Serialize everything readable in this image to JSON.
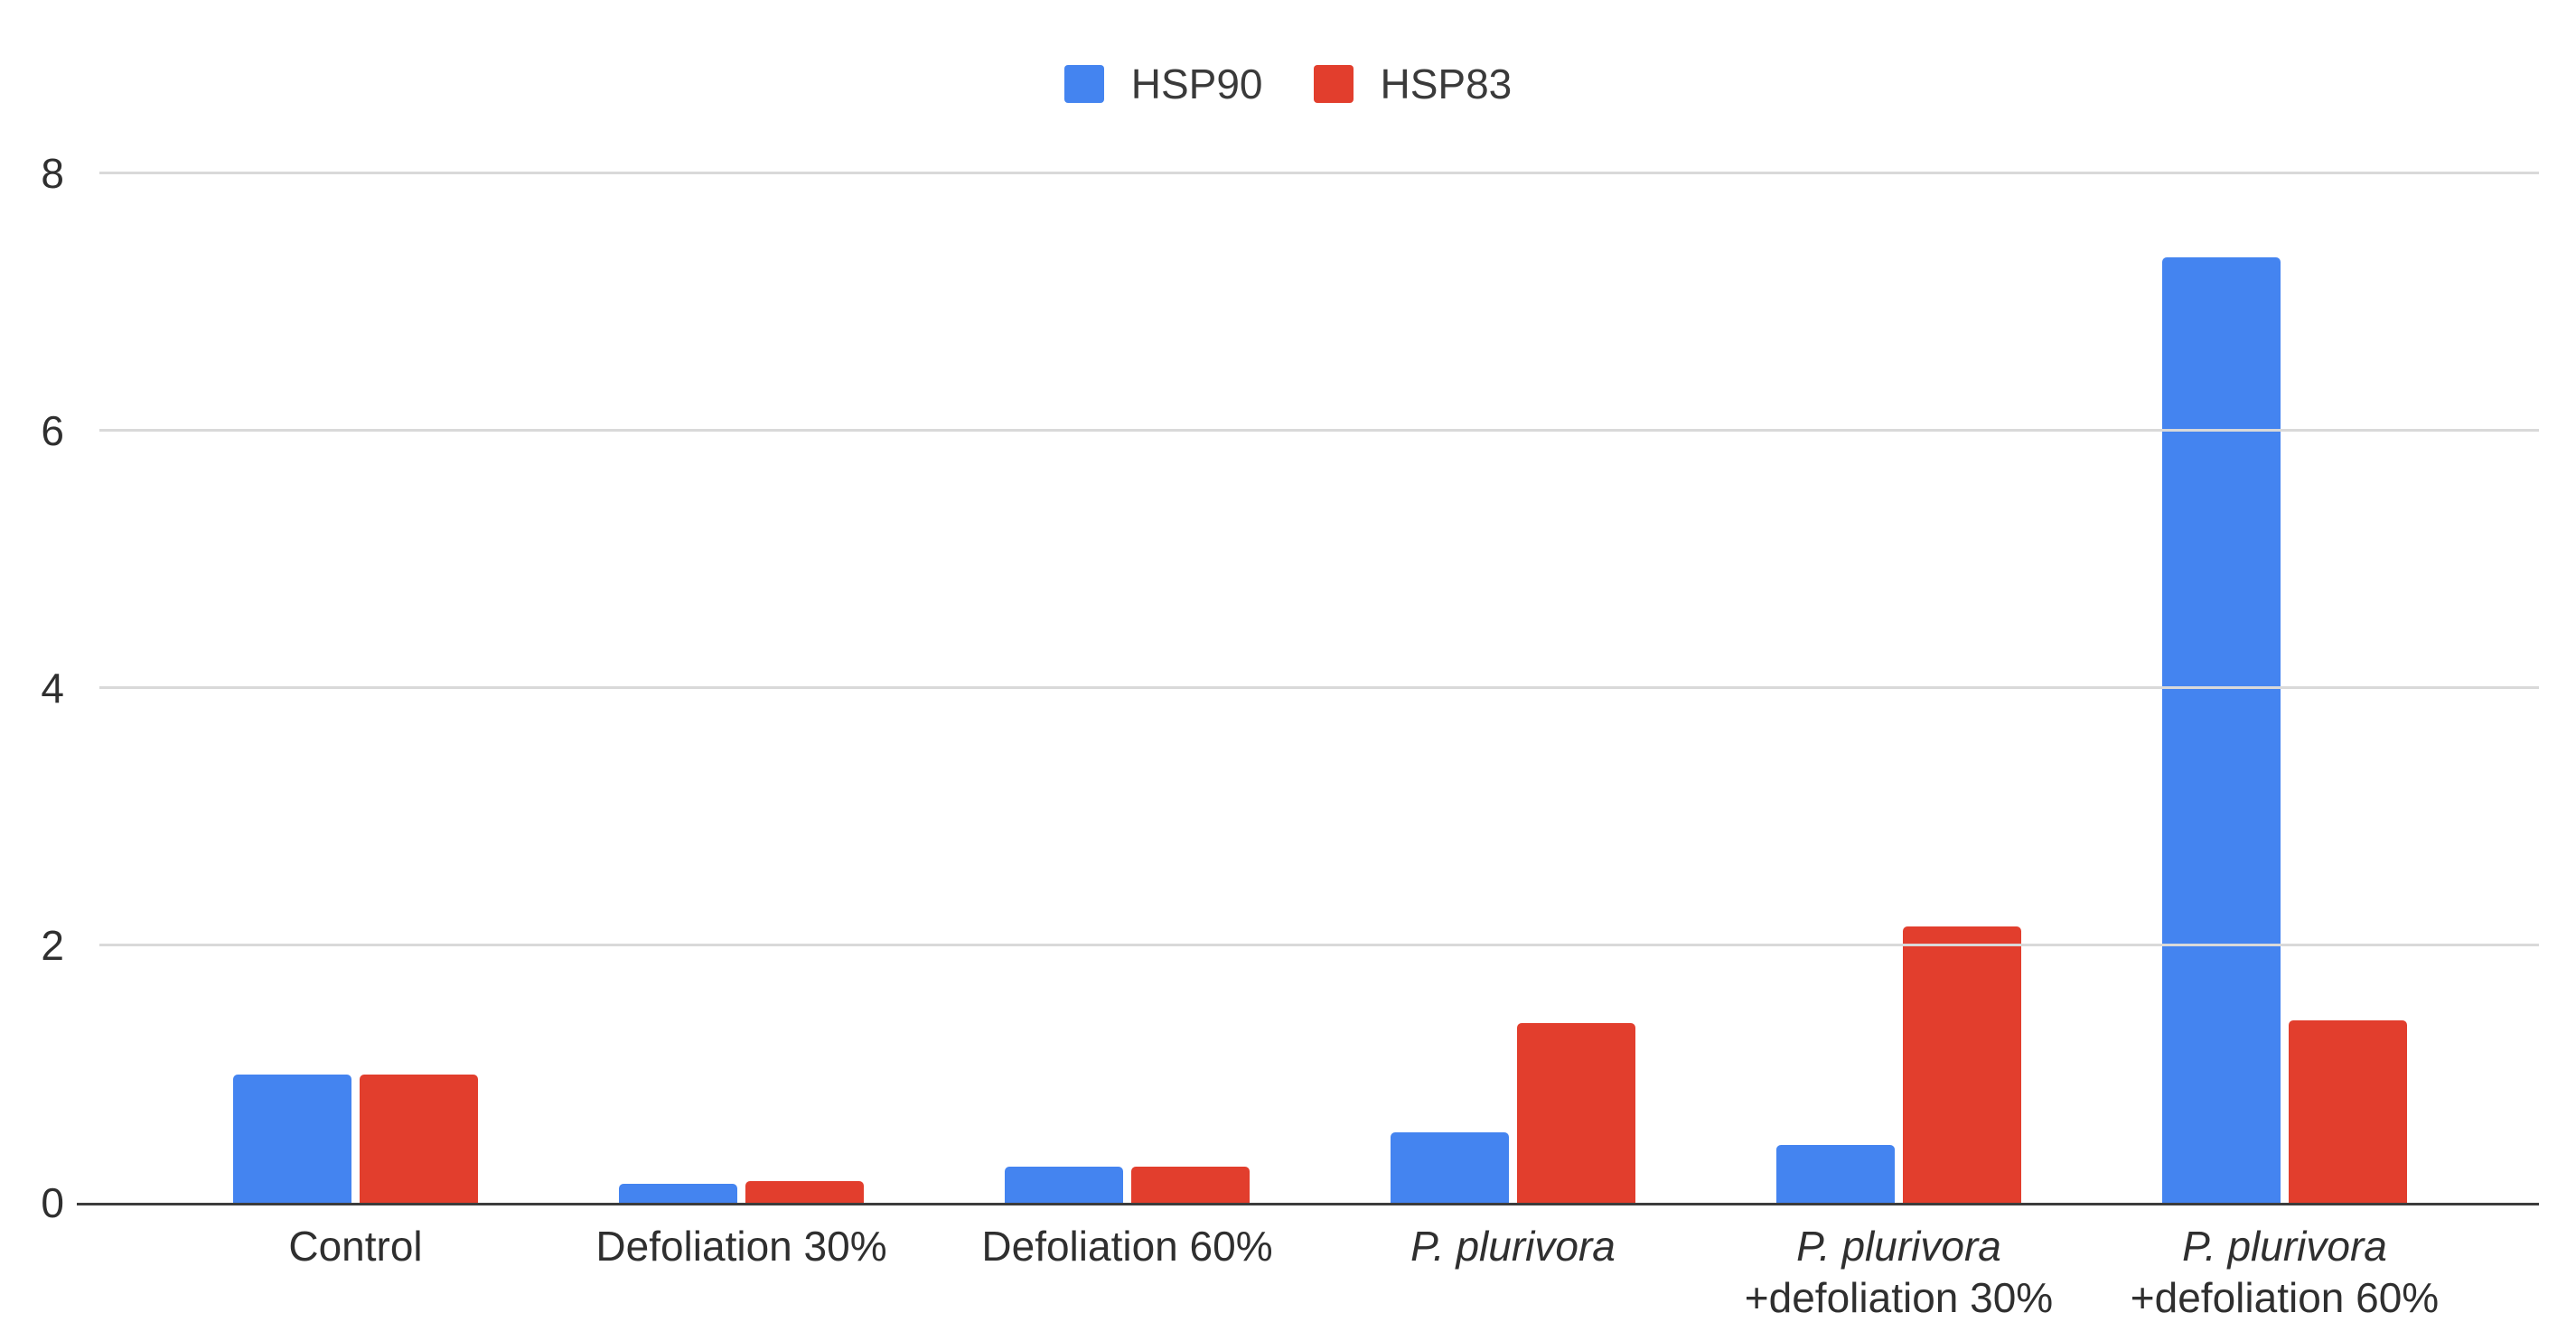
{
  "chart_data": {
    "type": "bar",
    "title": "",
    "legend": {
      "position": "top",
      "entries": [
        "HSP90",
        "HSP83"
      ]
    },
    "categories": [
      {
        "slug": "control",
        "label": "Control",
        "lines": [
          {
            "text": "Control",
            "italic": false
          }
        ]
      },
      {
        "slug": "defoliation-30",
        "label": "Defoliation 30%",
        "lines": [
          {
            "text": "Defoliation 30%",
            "italic": false
          }
        ]
      },
      {
        "slug": "defoliation-60",
        "label": "Defoliation 60%",
        "lines": [
          {
            "text": "Defoliation 60%",
            "italic": false
          }
        ]
      },
      {
        "slug": "p-plurivora",
        "label": "P. plurivora",
        "lines": [
          {
            "text": "P. plurivora",
            "italic": true
          }
        ]
      },
      {
        "slug": "p-plurivora-defoliation-30",
        "label": "P. plurivora +defoliation 30%",
        "lines": [
          {
            "text": "P. plurivora",
            "italic": true
          },
          {
            "text": "+defoliation 30%",
            "italic": false
          }
        ]
      },
      {
        "slug": "p-plurivora-defoliation-60",
        "label": "P. plurivora +defoliation 60%",
        "lines": [
          {
            "text": "P. plurivora",
            "italic": true
          },
          {
            "text": "+defoliation 60%",
            "italic": false
          }
        ]
      }
    ],
    "series": [
      {
        "name": "HSP90",
        "color": "#4484f0",
        "values": [
          1.0,
          0.15,
          0.28,
          0.55,
          0.45,
          7.35
        ]
      },
      {
        "name": "HSP83",
        "color": "#e23e2d",
        "values": [
          1.0,
          0.17,
          0.28,
          1.4,
          2.15,
          1.42
        ]
      }
    ],
    "xlabel": "",
    "ylabel": "",
    "ylim": [
      0,
      8
    ],
    "yticks": [
      0,
      2,
      4,
      6,
      8
    ],
    "grid": true,
    "colors": {
      "grid": "#d9d9d9",
      "axis": "#3c3c3c",
      "text": "#3a3a3a"
    }
  }
}
